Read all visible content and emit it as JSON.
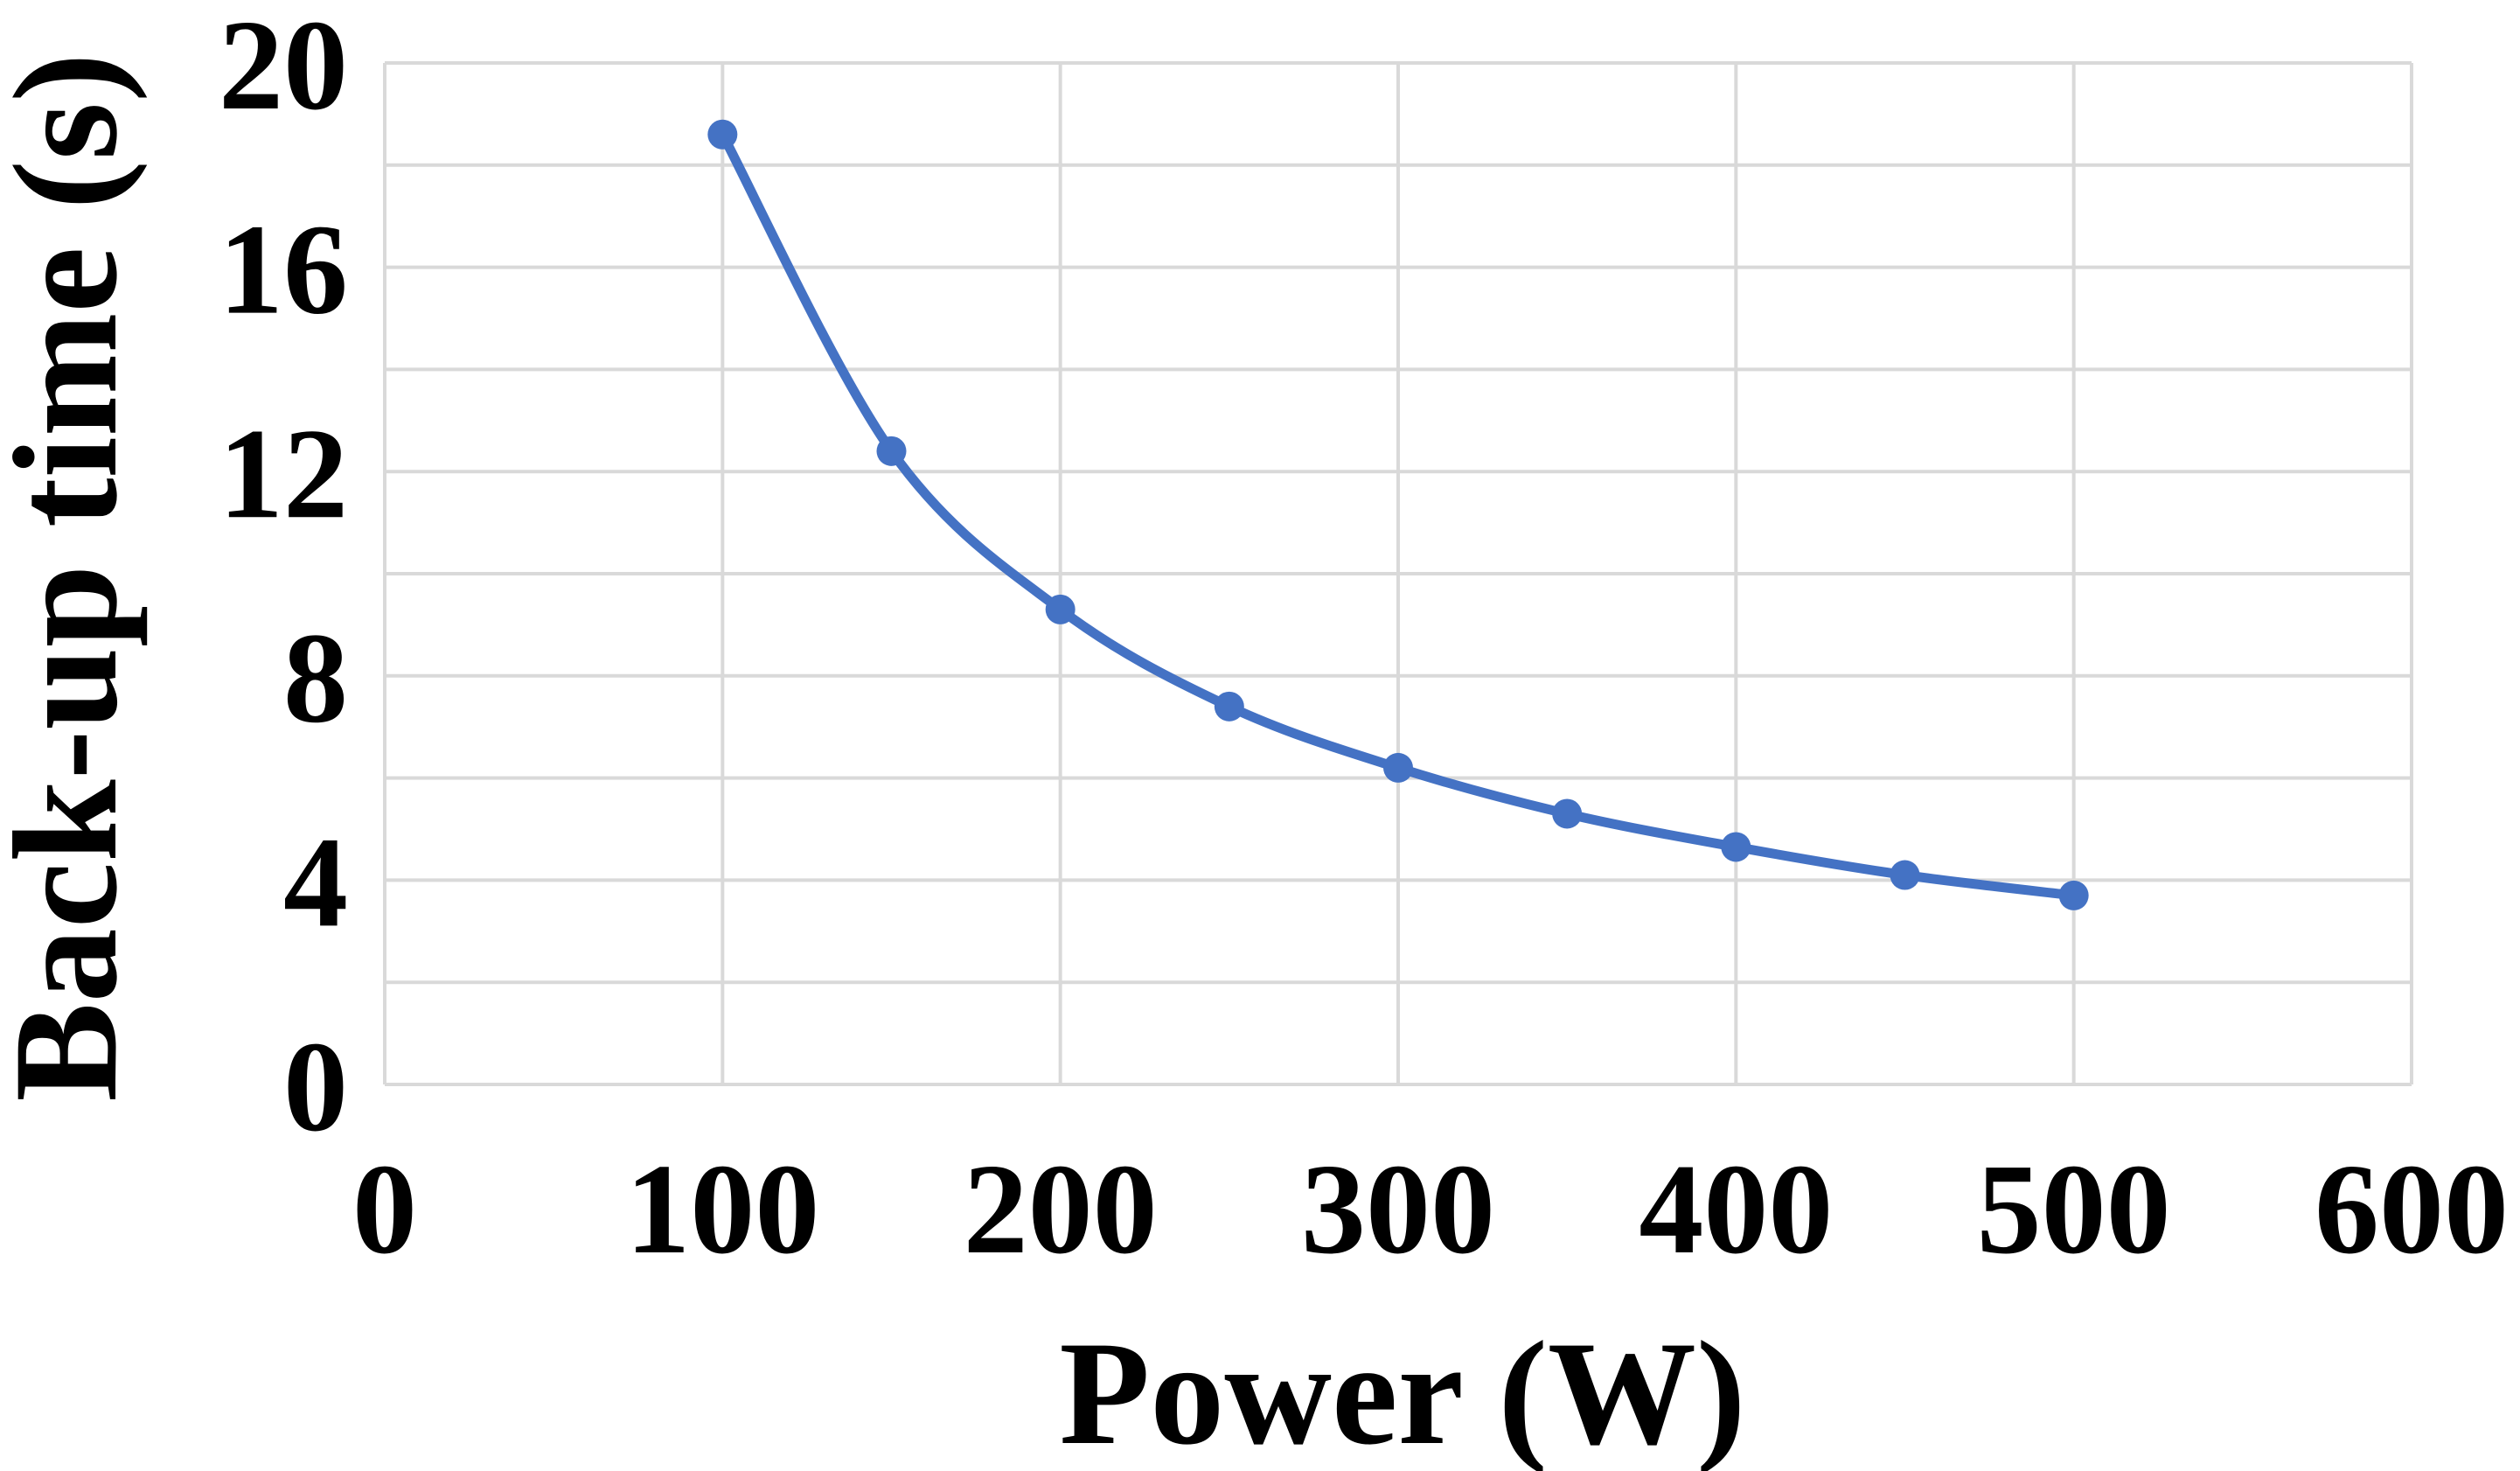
{
  "chart_data": {
    "type": "line",
    "title": "",
    "xlabel": "Power (W)",
    "ylabel": "Back-up time (s)",
    "xlim": [
      0,
      600
    ],
    "ylim": [
      0,
      20
    ],
    "x_ticks": [
      0,
      100,
      200,
      300,
      400,
      500,
      600
    ],
    "y_ticks": [
      0,
      4,
      8,
      12,
      16,
      20
    ],
    "y_minor_step": 2,
    "grid": true,
    "legend": "none",
    "series": [
      {
        "name": "Back-up time",
        "color": "#4472c4",
        "x": [
          100,
          150,
          200,
          250,
          300,
          350,
          400,
          450,
          500
        ],
        "y": [
          18.6,
          12.4,
          9.3,
          7.4,
          6.2,
          5.3,
          4.65,
          4.1,
          3.7
        ]
      }
    ]
  }
}
